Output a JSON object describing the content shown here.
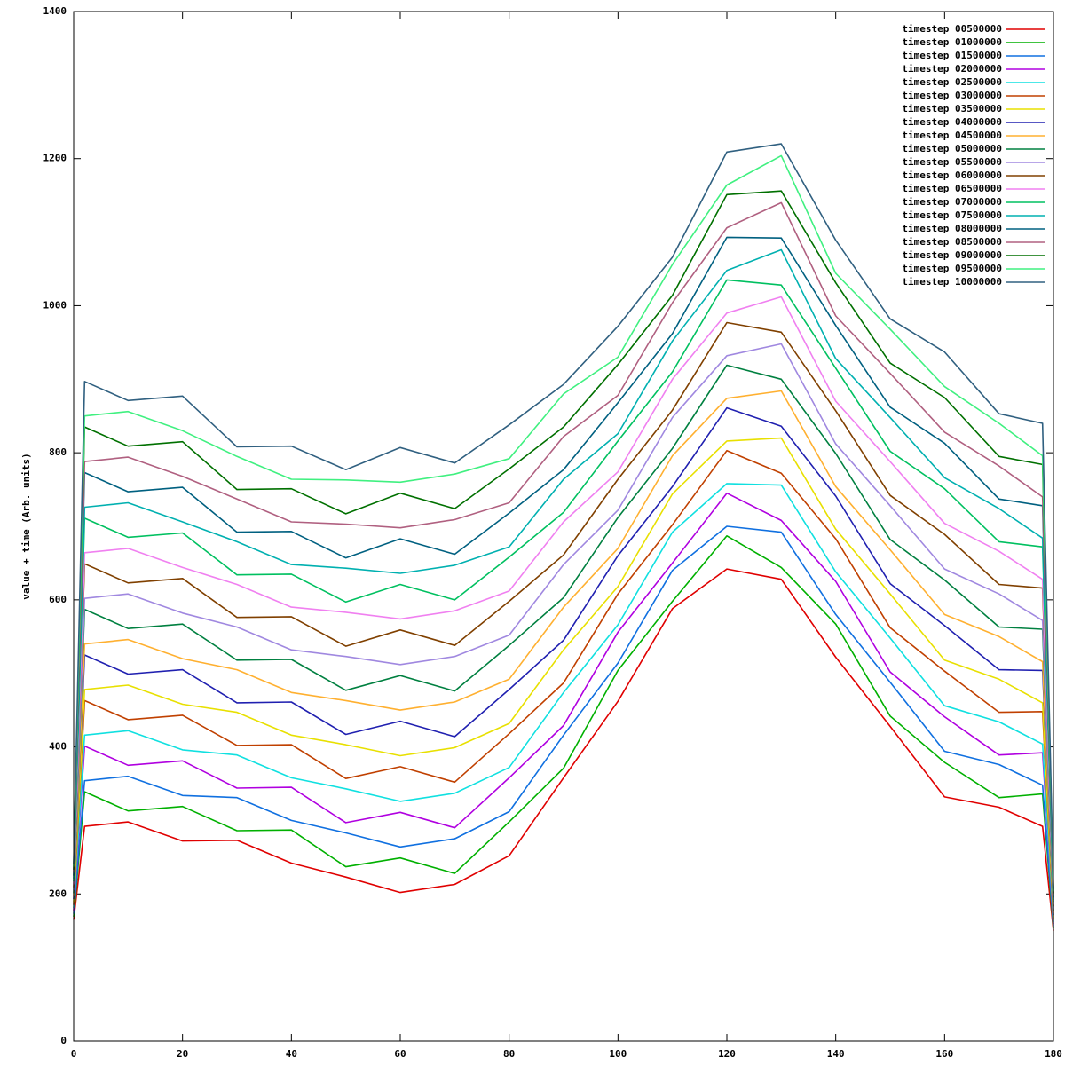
{
  "chart_data": {
    "type": "line",
    "ylabel": "value + time (Arb. units)",
    "xlim": [
      0,
      180
    ],
    "xticks": [
      0,
      20,
      40,
      60,
      80,
      100,
      120,
      140,
      160,
      180
    ],
    "ylim": [
      0,
      1400
    ],
    "yticks": [
      0,
      200,
      400,
      600,
      800,
      1000,
      1200,
      1400
    ],
    "grid": false,
    "legend": "top-right",
    "x": [
      0,
      2,
      10,
      20,
      30,
      40,
      50,
      60,
      70,
      80,
      90,
      100,
      110,
      120,
      130,
      140,
      150,
      160,
      170,
      178,
      180
    ],
    "series": [
      {
        "name": "timestep 00500000",
        "color": "#e00000",
        "values": [
          165,
          292,
          298,
          272,
          273,
          242,
          223,
          202,
          213,
          252,
          358,
          462,
          588,
          642,
          628,
          522,
          428,
          332,
          318,
          292,
          150
        ]
      },
      {
        "name": "timestep 01000000",
        "color": "#00b000",
        "values": [
          169,
          339,
          313,
          319,
          286,
          287,
          237,
          249,
          228,
          298,
          371,
          504,
          598,
          687,
          644,
          567,
          442,
          379,
          331,
          336,
          153
        ]
      },
      {
        "name": "timestep 01500000",
        "color": "#1070e0",
        "values": [
          173,
          354,
          360,
          334,
          331,
          300,
          283,
          264,
          275,
          312,
          416,
          514,
          640,
          700,
          692,
          580,
          488,
          394,
          376,
          348,
          156
        ]
      },
      {
        "name": "timestep 02000000",
        "color": "#b000e0",
        "values": [
          177,
          401,
          375,
          381,
          344,
          345,
          297,
          311,
          290,
          358,
          429,
          556,
          650,
          745,
          708,
          625,
          502,
          441,
          389,
          392,
          159
        ]
      },
      {
        "name": "timestep 02500000",
        "color": "#10e0e0",
        "values": [
          181,
          416,
          422,
          396,
          389,
          358,
          343,
          326,
          337,
          372,
          474,
          566,
          692,
          758,
          756,
          638,
          548,
          456,
          434,
          404,
          162
        ]
      },
      {
        "name": "timestep 03000000",
        "color": "#c04000",
        "values": [
          185,
          463,
          437,
          443,
          402,
          403,
          357,
          373,
          352,
          418,
          487,
          608,
          702,
          803,
          772,
          683,
          562,
          503,
          447,
          448,
          165
        ]
      },
      {
        "name": "timestep 03500000",
        "color": "#e8e000",
        "values": [
          189,
          478,
          484,
          458,
          447,
          416,
          403,
          388,
          399,
          432,
          532,
          618,
          744,
          816,
          820,
          696,
          608,
          518,
          492,
          460,
          168
        ]
      },
      {
        "name": "timestep 04000000",
        "color": "#2020b0",
        "values": [
          193,
          525,
          499,
          505,
          460,
          461,
          417,
          435,
          414,
          478,
          545,
          660,
          754,
          861,
          836,
          741,
          622,
          565,
          505,
          504,
          171
        ]
      },
      {
        "name": "timestep 04500000",
        "color": "#ffb030",
        "values": [
          197,
          540,
          546,
          520,
          505,
          474,
          463,
          450,
          461,
          492,
          590,
          670,
          796,
          874,
          884,
          754,
          668,
          580,
          550,
          516,
          174
        ]
      },
      {
        "name": "timestep 05000000",
        "color": "#008040",
        "values": [
          201,
          587,
          561,
          567,
          518,
          519,
          477,
          497,
          476,
          538,
          603,
          712,
          806,
          919,
          900,
          799,
          682,
          627,
          563,
          560,
          177
        ]
      },
      {
        "name": "timestep 05500000",
        "color": "#a088e0",
        "values": [
          205,
          602,
          608,
          582,
          563,
          532,
          523,
          512,
          523,
          552,
          648,
          722,
          848,
          932,
          948,
          812,
          728,
          642,
          608,
          572,
          180
        ]
      },
      {
        "name": "timestep 06000000",
        "color": "#804000",
        "values": [
          209,
          649,
          623,
          629,
          576,
          577,
          537,
          559,
          538,
          598,
          661,
          764,
          858,
          977,
          964,
          857,
          742,
          689,
          621,
          616,
          183
        ]
      },
      {
        "name": "timestep 06500000",
        "color": "#f080f0",
        "values": [
          213,
          664,
          670,
          644,
          621,
          590,
          583,
          574,
          585,
          612,
          706,
          774,
          900,
          990,
          1012,
          870,
          788,
          704,
          666,
          628,
          186
        ]
      },
      {
        "name": "timestep 07000000",
        "color": "#00c060",
        "values": [
          217,
          711,
          685,
          691,
          634,
          635,
          597,
          621,
          600,
          658,
          719,
          816,
          910,
          1035,
          1028,
          915,
          802,
          751,
          679,
          672,
          189
        ]
      },
      {
        "name": "timestep 07500000",
        "color": "#00b0b0",
        "values": [
          221,
          726,
          732,
          706,
          679,
          648,
          643,
          636,
          647,
          672,
          764,
          826,
          952,
          1048,
          1076,
          928,
          848,
          766,
          724,
          684,
          192
        ]
      },
      {
        "name": "timestep 08000000",
        "color": "#006080",
        "values": [
          225,
          773,
          747,
          753,
          692,
          693,
          657,
          683,
          662,
          718,
          777,
          868,
          962,
          1093,
          1092,
          973,
          862,
          813,
          737,
          728,
          195
        ]
      },
      {
        "name": "timestep 08500000",
        "color": "#b06080",
        "values": [
          229,
          788,
          794,
          768,
          737,
          706,
          703,
          698,
          709,
          732,
          822,
          878,
          1004,
          1106,
          1140,
          986,
          908,
          828,
          782,
          740,
          198
        ]
      },
      {
        "name": "timestep 09000000",
        "color": "#007000",
        "values": [
          233,
          835,
          809,
          815,
          750,
          751,
          717,
          745,
          724,
          778,
          835,
          920,
          1014,
          1151,
          1156,
          1031,
          922,
          875,
          795,
          784,
          201
        ]
      },
      {
        "name": "timestep 09500000",
        "color": "#40f080",
        "values": [
          237,
          850,
          856,
          830,
          795,
          764,
          763,
          760,
          771,
          792,
          880,
          930,
          1056,
          1164,
          1204,
          1044,
          968,
          890,
          840,
          796,
          204
        ]
      },
      {
        "name": "timestep 10000000",
        "color": "#306080",
        "values": [
          241,
          897,
          871,
          877,
          808,
          809,
          777,
          807,
          786,
          838,
          893,
          972,
          1066,
          1209,
          1220,
          1089,
          982,
          937,
          853,
          840,
          207
        ]
      }
    ]
  }
}
